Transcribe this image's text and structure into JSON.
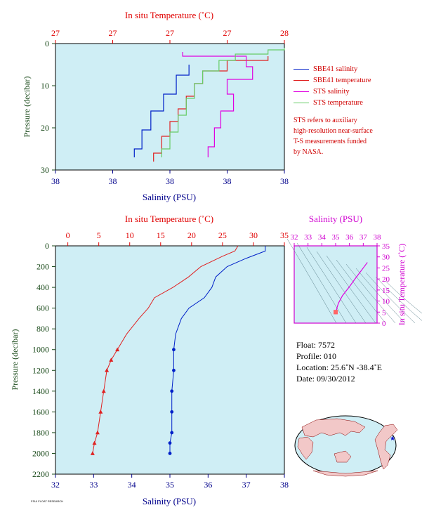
{
  "colors": {
    "plot_bg": "#cfeef5",
    "salinity_axis": "#00008b",
    "temperature_axis": "#e00000",
    "sbe41_salinity": "#0020c8",
    "sbe41_temperature": "#e02020",
    "sts_salinity": "#e000e0",
    "sts_temperature": "#66cc66",
    "ts_axis": "#d000d0",
    "pressure_axis": "#1a4a1a"
  },
  "top_panel": {
    "top_axis_title": "In situ Temperature (˚C)",
    "top_ticks": [
      "27",
      "27",
      "27",
      "27",
      "28"
    ],
    "bottom_axis_title": "Salinity (PSU)",
    "bottom_ticks": [
      "38",
      "38",
      "38",
      "38",
      "38"
    ],
    "left_axis_title": "Pressure (decibar)",
    "left_ticks": [
      "0",
      "10",
      "20",
      "30"
    ]
  },
  "legend": {
    "items": [
      {
        "label": "SBE41 salinity",
        "color": "#0020c8"
      },
      {
        "label": "SBE41 temperature",
        "color": "#e02020"
      },
      {
        "label": "STS salinity",
        "color": "#e000e0"
      },
      {
        "label": "STS temperature",
        "color": "#66cc66"
      }
    ],
    "note_lines": [
      "STS refers to auxiliary",
      "high-resolution near-surface",
      "T-S measurements funded",
      "by NASA."
    ]
  },
  "main_panel": {
    "top_axis_title": "In situ Temperature (˚C)",
    "top_ticks": [
      "0",
      "5",
      "10",
      "15",
      "20",
      "25",
      "30",
      "35"
    ],
    "bottom_axis_title": "Salinity (PSU)",
    "bottom_ticks": [
      "32",
      "33",
      "34",
      "35",
      "36",
      "37",
      "38"
    ],
    "left_axis_title": "Pressure (decibar)",
    "left_ticks": [
      "0",
      "200",
      "400",
      "600",
      "800",
      "1000",
      "1200",
      "1400",
      "1600",
      "1800",
      "2000",
      "2200"
    ]
  },
  "ts_panel": {
    "top_axis_title": "Salinity (PSU)",
    "top_ticks": [
      "32",
      "33",
      "34",
      "35",
      "36",
      "37",
      "38"
    ],
    "right_axis_title": "In situ Temperature (˚C)",
    "right_ticks": [
      "0",
      "5",
      "10",
      "15",
      "20",
      "25",
      "30",
      "35"
    ]
  },
  "float_info": {
    "float": "Float:  7572",
    "profile": "Profile:  010",
    "location": "Location:  25.6˚N  -38.4˚E",
    "date": "Date:  09/30/2012"
  },
  "credit": "FSUI FLOAT RESEARCH",
  "chart_data": [
    {
      "type": "line",
      "title": "",
      "xlabel": "Salinity (PSU) / In situ Temperature (˚C)",
      "ylabel": "Pressure (decibar)",
      "ylim": [
        30,
        0
      ],
      "series": [
        {
          "name": "SBE41 salinity",
          "x": [
            38.05,
            37.95,
            37.85,
            37.75,
            37.68,
            37.62
          ],
          "y": [
            5,
            10,
            14,
            18,
            23,
            27
          ]
        },
        {
          "name": "SBE41 temperature",
          "x": [
            27.9,
            27.65,
            27.5,
            27.45,
            27.4,
            27.35,
            27.3,
            27.25,
            27.2
          ],
          "y": [
            3,
            5,
            8,
            11,
            14,
            17,
            20,
            24,
            28
          ]
        },
        {
          "name": "STS salinity",
          "x": [
            38.0,
            38.5,
            38.55,
            38.35,
            38.4,
            38.3,
            38.25,
            38.2
          ],
          "y": [
            2,
            4,
            7,
            10,
            14,
            18,
            22,
            27
          ]
        },
        {
          "name": "STS temperature",
          "x": [
            28.0,
            27.9,
            27.7,
            27.6,
            27.5,
            27.45,
            27.4,
            27.35,
            27.3,
            27.25
          ],
          "y": [
            1,
            2,
            3,
            5,
            8,
            11,
            15,
            19,
            23,
            27
          ]
        }
      ]
    },
    {
      "type": "line",
      "title": "",
      "xlabel": "Salinity (PSU)",
      "ylabel": "Pressure (decibar)",
      "xlim": [
        32,
        38
      ],
      "ylim": [
        2200,
        0
      ],
      "series": [
        {
          "name": "Salinity (PSU)",
          "axis": "bottom",
          "x": [
            37.5,
            37.5,
            37.0,
            36.5,
            36.2,
            36.1,
            35.9,
            35.5,
            35.3,
            35.15,
            35.1,
            35.1,
            35.05,
            35.05,
            35.05,
            35.0,
            35.0
          ],
          "y": [
            0,
            50,
            120,
            200,
            300,
            400,
            500,
            600,
            700,
            850,
            1000,
            1200,
            1400,
            1600,
            1800,
            1900,
            2000
          ]
        },
        {
          "name": "In situ Temperature (˚C)",
          "axis": "top",
          "xlim": [
            0,
            35
          ],
          "x": [
            27.5,
            27.0,
            25.0,
            21.5,
            19.5,
            17.0,
            14.0,
            13.0,
            11.5,
            9.5,
            8.0,
            7.0,
            6.3,
            5.8,
            5.3,
            4.8,
            4.3,
            4.0
          ],
          "y": [
            0,
            50,
            100,
            200,
            300,
            400,
            500,
            600,
            700,
            850,
            1000,
            1100,
            1200,
            1400,
            1600,
            1800,
            1900,
            2000
          ]
        }
      ]
    },
    {
      "type": "line",
      "title": "",
      "xlabel": "Salinity (PSU)",
      "ylabel": "In situ Temperature (˚C)",
      "xlim": [
        32,
        38
      ],
      "ylim": [
        0,
        35
      ],
      "series": [
        {
          "name": "T-S curve",
          "x": [
            37.3,
            37.0,
            36.4,
            36.0,
            35.5,
            35.2,
            35.1,
            35.05,
            35.0
          ],
          "y": [
            27.5,
            25.0,
            20.0,
            16.5,
            12.5,
            9.0,
            7.0,
            5.5,
            4.0
          ]
        }
      ]
    }
  ]
}
